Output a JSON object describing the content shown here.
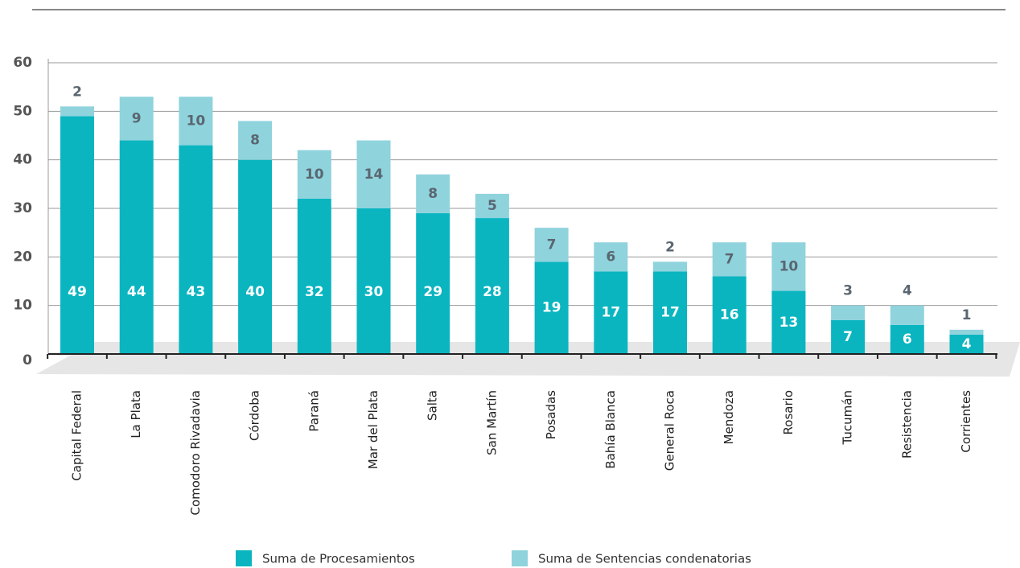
{
  "chart_data": {
    "type": "stacked_bar",
    "categories": [
      "Capital Federal",
      "La Plata",
      "Comodoro Rivadavia",
      "Córdoba",
      "Paraná",
      "Mar del Plata",
      "Salta",
      "San Martín",
      "Posadas",
      "Bahía Blanca",
      "General Roca",
      "Mendoza",
      "Rosario",
      "Tucumán",
      "Resistencia",
      "Corrientes"
    ],
    "series": [
      {
        "name": "Suma de Procesamientos",
        "color": "#0ab5c0",
        "values": [
          49,
          44,
          43,
          40,
          32,
          30,
          29,
          28,
          19,
          17,
          17,
          16,
          13,
          7,
          6,
          4
        ]
      },
      {
        "name": "Suma de Sentencias condenatorias",
        "color": "#8fd3dd",
        "values": [
          2,
          9,
          10,
          8,
          10,
          14,
          8,
          5,
          7,
          6,
          2,
          7,
          10,
          3,
          4,
          1
        ]
      }
    ],
    "ylim": [
      0,
      60
    ],
    "yticks": [
      0,
      10,
      20,
      30,
      40,
      50,
      60
    ],
    "grid": true
  }
}
